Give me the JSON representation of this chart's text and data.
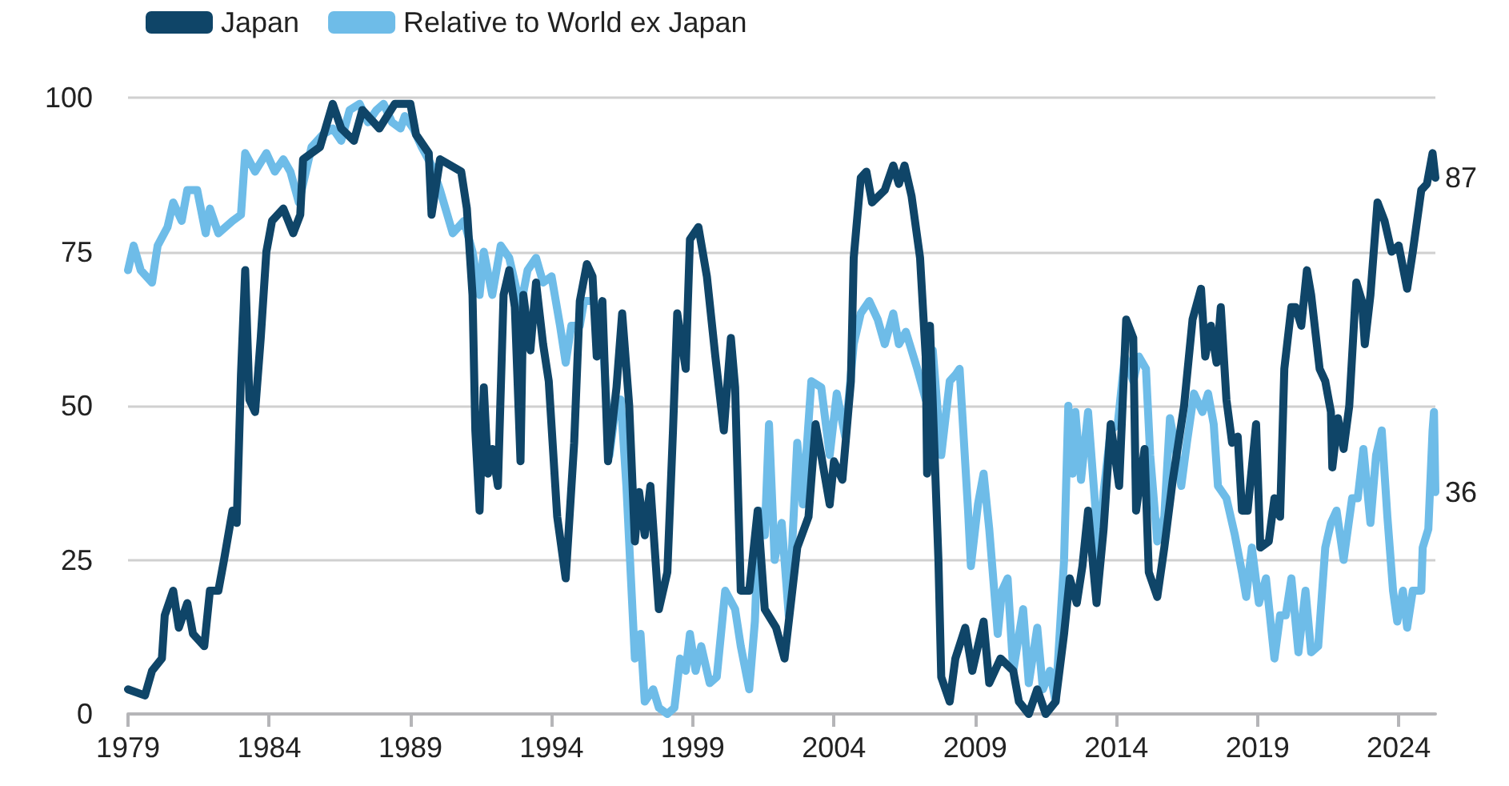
{
  "chart_data": {
    "type": "line",
    "xlim": [
      1979,
      2025.3
    ],
    "xticks": [
      1979,
      1984,
      1989,
      1994,
      1999,
      2004,
      2009,
      2014,
      2019,
      2024
    ],
    "ylim": [
      0,
      100
    ],
    "yticks": [
      0,
      25,
      50,
      75,
      100
    ],
    "grid": "y",
    "legend": "top left",
    "marker": "none",
    "line_style": "solid",
    "annotations": [
      {
        "text": "87",
        "x": 2025.3,
        "y": 87
      },
      {
        "text": "36",
        "x": 2025.3,
        "y": 36
      }
    ],
    "series": [
      {
        "name": "Japan",
        "color": "#0f4568",
        "x": [
          1979.0,
          1979.6,
          1979.85,
          1980.2,
          1980.3,
          1980.6,
          1980.8,
          1981.1,
          1981.3,
          1981.7,
          1981.9,
          1982.2,
          1982.4,
          1982.7,
          1982.85,
          1983.0,
          1983.15,
          1983.3,
          1983.5,
          1983.7,
          1983.9,
          1984.1,
          1984.5,
          1984.85,
          1985.1,
          1985.2,
          1985.8,
          1986.25,
          1986.55,
          1987.0,
          1987.3,
          1987.9,
          1988.45,
          1989.0,
          1989.2,
          1989.65,
          1989.75,
          1990.05,
          1990.8,
          1991.0,
          1991.2,
          1991.3,
          1991.45,
          1991.6,
          1991.75,
          1991.9,
          1992.1,
          1992.3,
          1992.5,
          1992.7,
          1992.9,
          1993.0,
          1993.25,
          1993.45,
          1993.7,
          1993.9,
          1994.2,
          1994.5,
          1994.8,
          1995.0,
          1995.25,
          1995.45,
          1995.6,
          1995.8,
          1996.0,
          1996.3,
          1996.5,
          1996.75,
          1996.95,
          1997.1,
          1997.3,
          1997.5,
          1997.8,
          1998.1,
          1998.3,
          1998.45,
          1998.75,
          1998.9,
          1999.2,
          1999.5,
          1999.8,
          2000.1,
          2000.35,
          2000.5,
          2000.7,
          2001.0,
          2001.3,
          2001.55,
          2001.95,
          2002.25,
          2002.7,
          2003.1,
          2003.35,
          2003.55,
          2003.85,
          2004.0,
          2004.3,
          2004.6,
          2004.7,
          2004.95,
          2005.15,
          2005.35,
          2005.8,
          2006.1,
          2006.3,
          2006.5,
          2006.75,
          2007.05,
          2007.25,
          2007.3,
          2007.4,
          2007.7,
          2007.8,
          2008.1,
          2008.3,
          2008.65,
          2008.9,
          2009.3,
          2009.5,
          2009.9,
          2010.35,
          2010.55,
          2010.9,
          2011.2,
          2011.5,
          2011.85,
          2012.15,
          2012.35,
          2012.6,
          2012.8,
          2013.0,
          2013.3,
          2013.55,
          2013.8,
          2014.1,
          2014.35,
          2014.6,
          2014.7,
          2015.0,
          2015.15,
          2015.45,
          2015.7,
          2016.0,
          2016.4,
          2016.7,
          2017.0,
          2017.15,
          2017.35,
          2017.55,
          2017.7,
          2017.9,
          2018.1,
          2018.3,
          2018.45,
          2018.65,
          2018.95,
          2019.1,
          2019.4,
          2019.6,
          2019.8,
          2019.95,
          2020.2,
          2020.35,
          2020.55,
          2020.75,
          2020.9,
          2021.2,
          2021.4,
          2021.6,
          2021.65,
          2021.85,
          2022.05,
          2022.25,
          2022.5,
          2022.7,
          2022.8,
          2023.0,
          2023.25,
          2023.5,
          2023.75,
          2024.0,
          2024.3,
          2024.5,
          2024.8,
          2025.0,
          2025.2,
          2025.3
        ],
        "values": [
          4,
          3,
          7,
          9,
          16,
          20,
          14,
          18,
          13,
          11,
          20,
          20,
          25,
          33,
          31,
          55,
          72,
          51,
          49,
          61,
          75,
          80,
          82,
          78,
          81,
          90,
          92,
          99,
          95,
          93,
          98,
          95,
          99,
          99,
          94,
          91,
          81,
          90,
          88,
          82,
          68,
          46,
          33,
          53,
          39,
          43,
          37,
          68,
          72,
          66,
          41,
          68,
          59,
          70,
          60,
          54,
          32,
          22,
          44,
          67,
          73,
          71,
          58,
          67,
          41,
          53,
          65,
          50,
          28,
          36,
          29,
          37,
          17,
          23,
          46,
          65,
          56,
          77,
          79,
          71,
          58,
          46,
          61,
          53,
          20,
          20,
          33,
          17,
          14,
          9,
          27,
          32,
          47,
          42,
          34,
          41,
          38,
          54,
          74,
          87,
          88,
          83,
          85,
          89,
          86,
          89,
          84,
          74,
          58,
          39,
          63,
          25,
          6,
          2,
          9,
          14,
          7,
          15,
          5,
          9,
          7,
          2,
          0,
          4,
          0,
          2,
          13,
          22,
          18,
          24,
          33,
          18,
          30,
          47,
          37,
          64,
          61,
          33,
          43,
          23,
          19,
          27,
          38,
          50,
          64,
          69,
          58,
          63,
          57,
          66,
          51,
          44,
          45,
          33,
          33,
          47,
          27,
          28,
          35,
          32,
          56,
          66,
          66,
          63,
          72,
          68,
          56,
          54,
          49,
          40,
          48,
          43,
          50,
          70,
          67,
          60,
          68,
          83,
          80,
          75,
          76,
          69,
          75,
          85,
          86,
          91,
          87
        ]
      },
      {
        "name": "Relative to World ex Japan",
        "color": "#6ebce8",
        "x": [
          1979.0,
          1979.2,
          1979.45,
          1979.85,
          1980.05,
          1980.4,
          1980.6,
          1980.9,
          1981.1,
          1981.45,
          1981.75,
          1981.9,
          1982.2,
          1982.7,
          1983.0,
          1983.15,
          1983.5,
          1983.9,
          1984.2,
          1984.5,
          1984.75,
          1985.05,
          1985.25,
          1985.5,
          1985.9,
          1986.25,
          1986.55,
          1986.85,
          1987.2,
          1987.5,
          1987.8,
          1988.05,
          1988.35,
          1988.65,
          1988.8,
          1989.1,
          1989.4,
          1989.75,
          1990.05,
          1990.5,
          1990.9,
          1991.2,
          1991.45,
          1991.6,
          1991.9,
          1992.2,
          1992.5,
          1992.9,
          1993.15,
          1993.45,
          1993.7,
          1994.0,
          1994.3,
          1994.5,
          1994.7,
          1995.0,
          1995.15,
          1995.5,
          1995.8,
          1996.05,
          1996.3,
          1996.45,
          1996.65,
          1996.95,
          1997.15,
          1997.3,
          1997.6,
          1997.8,
          1998.1,
          1998.35,
          1998.55,
          1998.75,
          1998.9,
          1999.1,
          1999.3,
          1999.6,
          1999.85,
          2000.15,
          2000.5,
          2000.7,
          2001.0,
          2001.2,
          2001.35,
          2001.55,
          2001.7,
          2001.9,
          2002.15,
          2002.4,
          2002.7,
          2002.9,
          2003.2,
          2003.55,
          2003.85,
          2004.1,
          2004.4,
          2004.7,
          2004.95,
          2005.25,
          2005.55,
          2005.8,
          2006.1,
          2006.3,
          2006.55,
          2006.95,
          2007.25,
          2007.5,
          2007.8,
          2008.1,
          2008.3,
          2008.45,
          2008.75,
          2008.85,
          2009.1,
          2009.3,
          2009.5,
          2009.8,
          2009.95,
          2010.15,
          2010.35,
          2010.7,
          2010.9,
          2011.2,
          2011.4,
          2011.65,
          2011.85,
          2012.15,
          2012.3,
          2012.45,
          2012.55,
          2012.75,
          2013.0,
          2013.2,
          2013.4,
          2013.55,
          2013.8,
          2014.05,
          2014.3,
          2014.6,
          2014.8,
          2015.05,
          2015.2,
          2015.45,
          2015.7,
          2015.9,
          2016.1,
          2016.3,
          2016.5,
          2016.75,
          2017.05,
          2017.25,
          2017.45,
          2017.6,
          2017.9,
          2018.2,
          2018.45,
          2018.6,
          2018.8,
          2019.05,
          2019.3,
          2019.6,
          2019.8,
          2020.0,
          2020.2,
          2020.45,
          2020.7,
          2020.9,
          2021.15,
          2021.4,
          2021.6,
          2021.8,
          2022.05,
          2022.35,
          2022.55,
          2022.75,
          2023.0,
          2023.2,
          2023.4,
          2023.6,
          2023.8,
          2023.95,
          2024.15,
          2024.3,
          2024.5,
          2024.8,
          2024.85,
          2025.05,
          2025.2,
          2025.25,
          2025.3
        ],
        "values": [
          72,
          76,
          72,
          70,
          76,
          79,
          83,
          80,
          85,
          85,
          78,
          82,
          78,
          80,
          81,
          91,
          88,
          91,
          88,
          90,
          88,
          83,
          87,
          92,
          94,
          95,
          93,
          98,
          99,
          96,
          98,
          99,
          96,
          95,
          97,
          95,
          92,
          89,
          85,
          78,
          80,
          75,
          68,
          75,
          68,
          76,
          74,
          66,
          72,
          74,
          70,
          71,
          63,
          57,
          63,
          63,
          67,
          67,
          62,
          42,
          51,
          51,
          37,
          9,
          13,
          2,
          4,
          1,
          0,
          1,
          9,
          7,
          13,
          7,
          11,
          5,
          6,
          20,
          17,
          11,
          4,
          15,
          33,
          29,
          47,
          25,
          31,
          16,
          44,
          34,
          54,
          53,
          42,
          52,
          45,
          60,
          65,
          67,
          64,
          60,
          65,
          60,
          62,
          56,
          51,
          59,
          42,
          54,
          55,
          56,
          33,
          24,
          34,
          39,
          30,
          13,
          20,
          22,
          7,
          17,
          5,
          14,
          4,
          7,
          2,
          25,
          50,
          39,
          49,
          38,
          49,
          37,
          25,
          36,
          46,
          47,
          58,
          54,
          58,
          56,
          42,
          28,
          32,
          48,
          43,
          37,
          44,
          52,
          49,
          52,
          47,
          37,
          35,
          29,
          23,
          19,
          27,
          18,
          22,
          9,
          16,
          16,
          22,
          10,
          20,
          10,
          11,
          27,
          31,
          33,
          25,
          35,
          35,
          43,
          31,
          42,
          46,
          32,
          20,
          15,
          20,
          14,
          20,
          20,
          27,
          30,
          46,
          49,
          36
        ]
      }
    ]
  }
}
